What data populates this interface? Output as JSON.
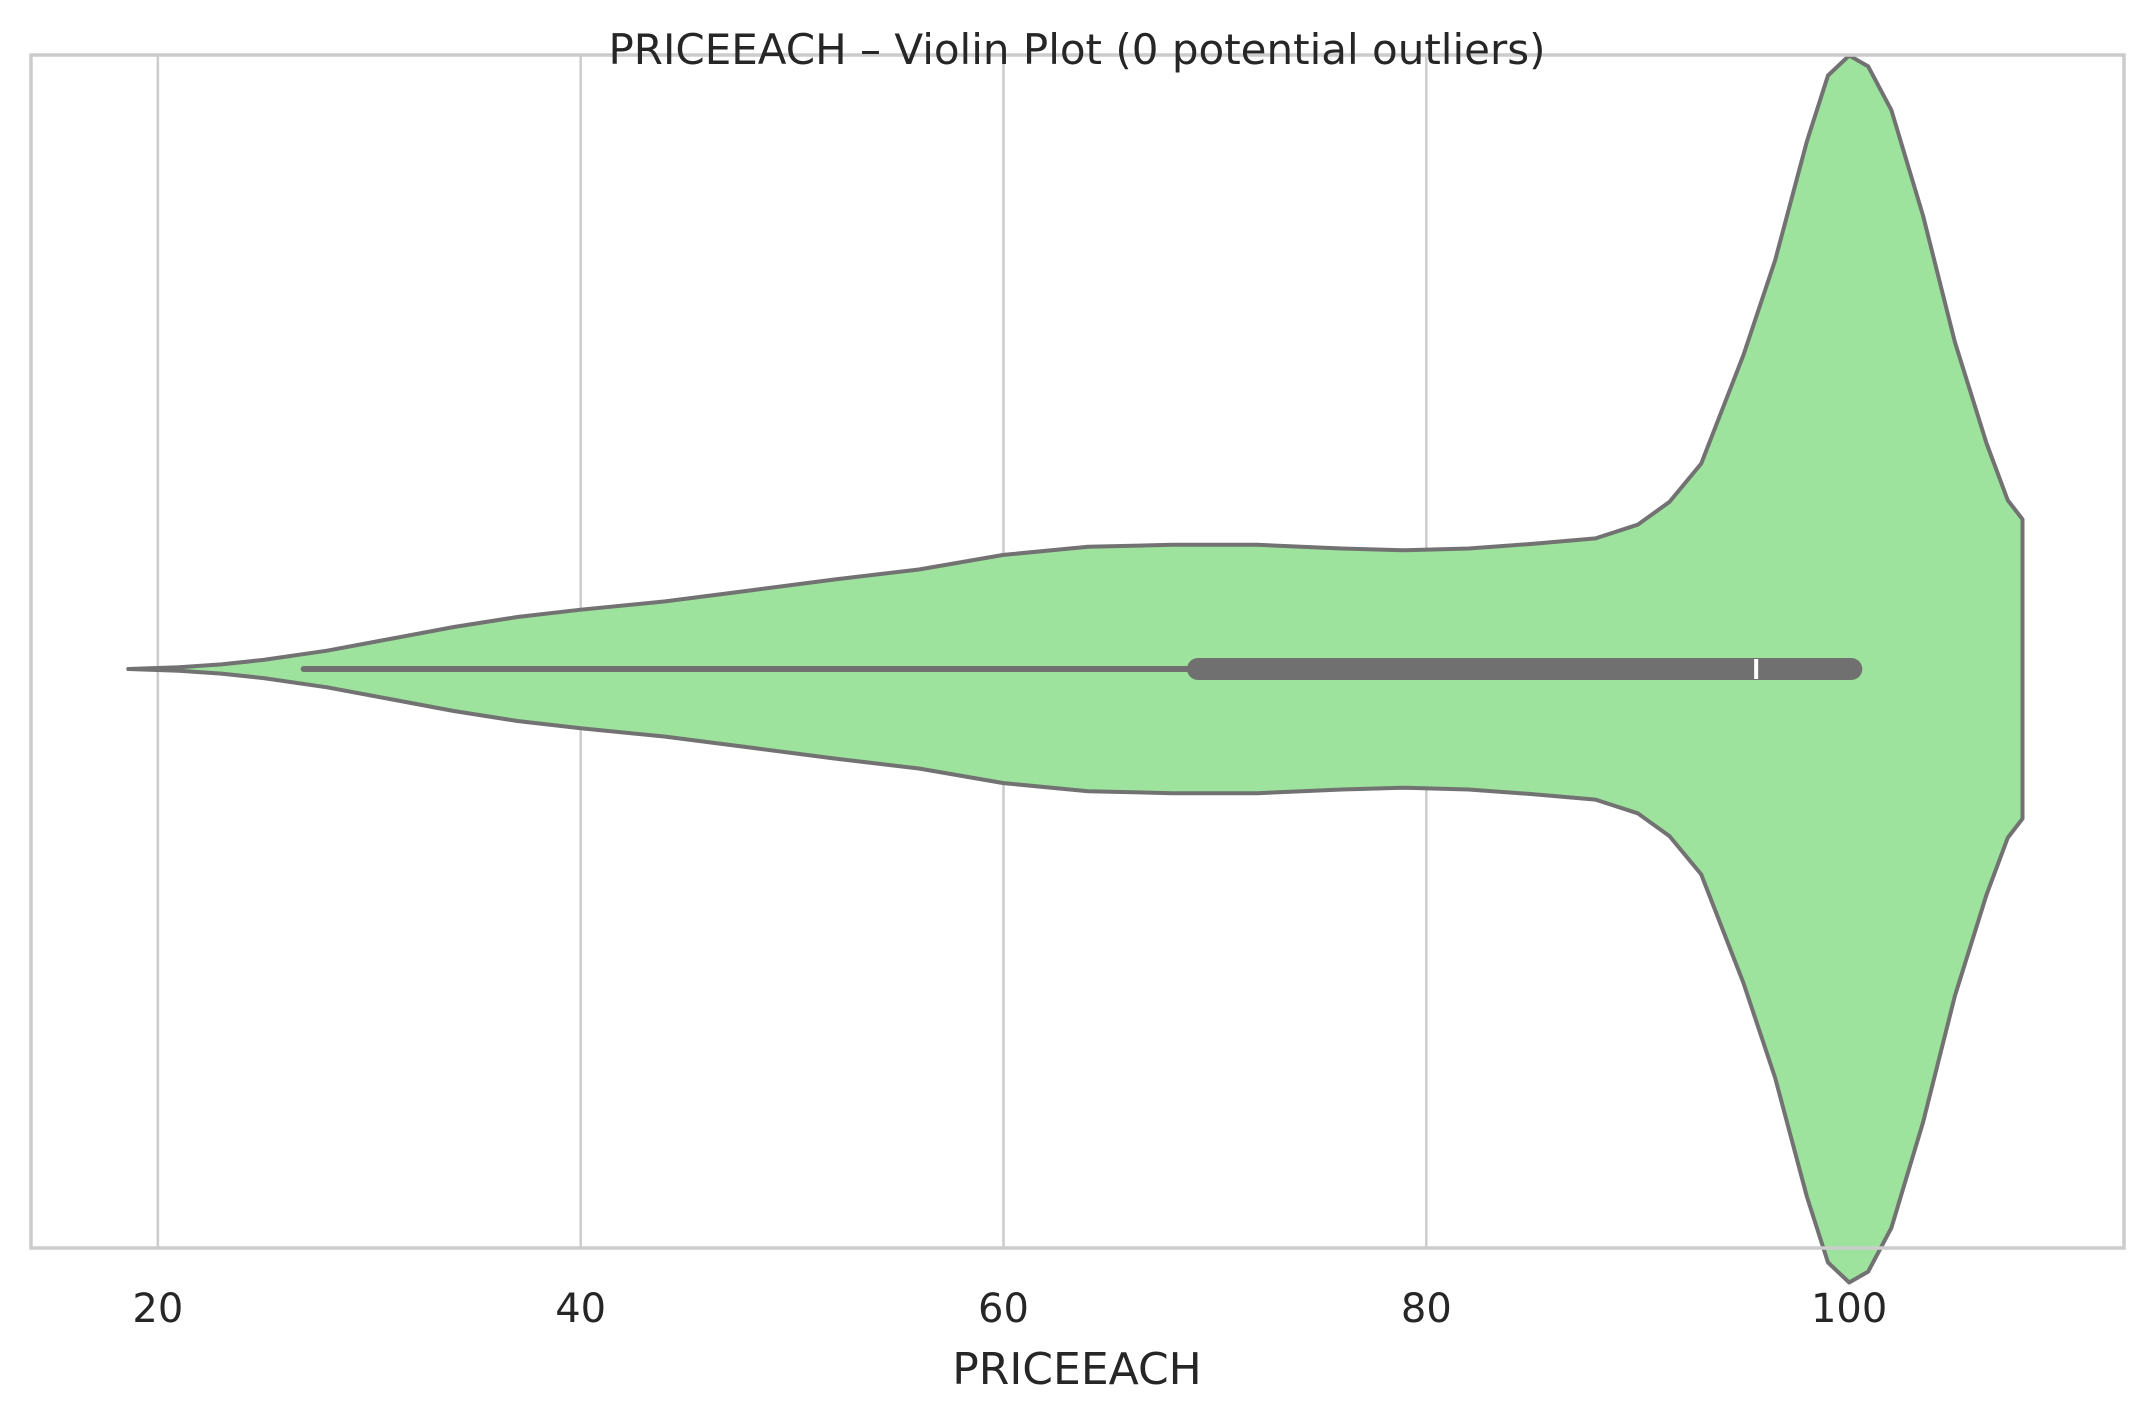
{
  "chart_data": {
    "type": "violin",
    "orientation": "horizontal",
    "title": "PRICEEACH – Violin Plot (0 potential outliers)",
    "xlabel": "PRICEEACH",
    "ylabel": "",
    "xlim": [
      14,
      113
    ],
    "xticks": [
      20,
      40,
      60,
      80,
      100
    ],
    "xtick_labels": [
      "20",
      "40",
      "60",
      "80",
      "100"
    ],
    "grid": "vertical",
    "legend": "none",
    "colors": {
      "fill": "#9de29d",
      "outline": "#727272",
      "box": "#707070",
      "median_marker": "#ffffff",
      "grid": "#cccccc",
      "frame": "#cccccc"
    },
    "violin": {
      "density_profile": [
        [
          18.6,
          0.0
        ],
        [
          21,
          0.002
        ],
        [
          23,
          0.005
        ],
        [
          25,
          0.01
        ],
        [
          28,
          0.02
        ],
        [
          31,
          0.033
        ],
        [
          34,
          0.046
        ],
        [
          37,
          0.057
        ],
        [
          40,
          0.065
        ],
        [
          44,
          0.074
        ],
        [
          48,
          0.086
        ],
        [
          52,
          0.098
        ],
        [
          56,
          0.109
        ],
        [
          60,
          0.125
        ],
        [
          64,
          0.134
        ],
        [
          68,
          0.136
        ],
        [
          72,
          0.136
        ],
        [
          76,
          0.132
        ],
        [
          79,
          0.13
        ],
        [
          82,
          0.132
        ],
        [
          85,
          0.137
        ],
        [
          88,
          0.143
        ],
        [
          90,
          0.158
        ],
        [
          91.5,
          0.183
        ],
        [
          93,
          0.225
        ],
        [
          95,
          0.344
        ],
        [
          96.5,
          0.448
        ],
        [
          98,
          0.578
        ],
        [
          99,
          0.65
        ],
        [
          100,
          0.672
        ],
        [
          100.9,
          0.66
        ],
        [
          102,
          0.612
        ],
        [
          103.5,
          0.496
        ],
        [
          105,
          0.358
        ],
        [
          106.5,
          0.247
        ],
        [
          107.5,
          0.185
        ],
        [
          108.2,
          0.164
        ]
      ],
      "whisker_low": 26.9,
      "q1": 69.2,
      "median": 95.6,
      "q3": 100.1,
      "whisker_high": 100.1,
      "outliers": []
    }
  }
}
